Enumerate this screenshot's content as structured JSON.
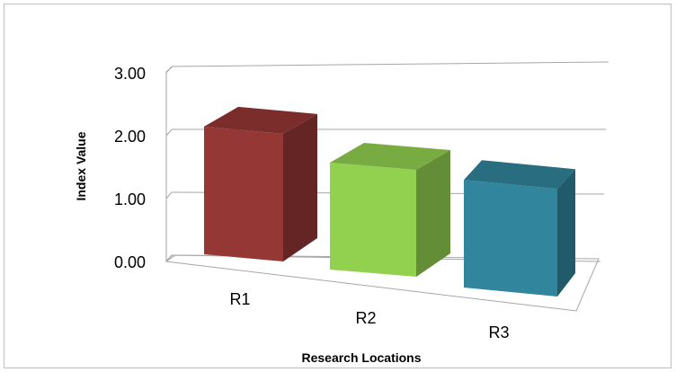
{
  "chart_data": {
    "type": "bar",
    "style": "3d-column",
    "title": "",
    "xlabel": "Research Locations",
    "ylabel": "Index Value",
    "categories": [
      "R1",
      "R2",
      "R3"
    ],
    "values": [
      2.03,
      1.7,
      1.71
    ],
    "ylim": [
      0,
      3
    ],
    "y_ticks": [
      "0.00",
      "1.00",
      "2.00",
      "3.00"
    ],
    "grid": true,
    "legend": "none",
    "colors": {
      "R1": "#953735",
      "R2": "#92d050",
      "R3": "#31859c"
    }
  }
}
